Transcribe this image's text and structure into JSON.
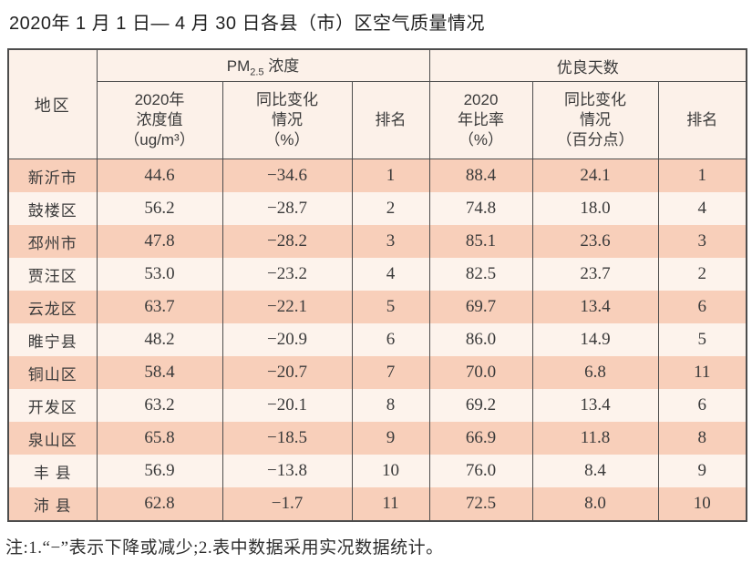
{
  "page": {
    "title": "2020年 1 月 1 日— 4 月 30 日各县（市）区空气质量情况",
    "note": "注:1.“−”表示下降或减少;2.表中数据采用实况数据统计。"
  },
  "colors": {
    "row_odd": "#f8cfba",
    "row_even": "#fdf3ec",
    "header_bg": "#fcf1e9",
    "border": "#4d4d4d",
    "text": "#3a3a3a"
  },
  "table": {
    "header": {
      "region": "地区",
      "pm_group": {
        "prefix": "PM",
        "sub": "2.5",
        "suffix": " 浓度"
      },
      "good_days_group": "优良天数",
      "sub": {
        "pm_value": [
          "2020年",
          "浓度值",
          "（ug/m³）"
        ],
        "pm_change": [
          "同比变化",
          "情况",
          "（%）"
        ],
        "pm_rank": "排名",
        "good_ratio": [
          "2020",
          "年比率",
          "（%）"
        ],
        "good_change": [
          "同比变化",
          "情况",
          "（百分点）"
        ],
        "good_rank": "排名"
      }
    },
    "rows": [
      [
        "新沂市",
        "44.6",
        "−34.6",
        "1",
        "88.4",
        "24.1",
        "1"
      ],
      [
        "鼓楼区",
        "56.2",
        "−28.7",
        "2",
        "74.8",
        "18.0",
        "4"
      ],
      [
        "邳州市",
        "47.8",
        "−28.2",
        "3",
        "85.1",
        "23.6",
        "3"
      ],
      [
        "贾汪区",
        "53.0",
        "−23.2",
        "4",
        "82.5",
        "23.7",
        "2"
      ],
      [
        "云龙区",
        "63.7",
        "−22.1",
        "5",
        "69.7",
        "13.4",
        "6"
      ],
      [
        "睢宁县",
        "48.2",
        "−20.9",
        "6",
        "86.0",
        "14.9",
        "5"
      ],
      [
        "铜山区",
        "58.4",
        "−20.7",
        "7",
        "70.0",
        "6.8",
        "11"
      ],
      [
        "开发区",
        "63.2",
        "−20.1",
        "8",
        "69.2",
        "13.4",
        "6"
      ],
      [
        "泉山区",
        "65.8",
        "−18.5",
        "9",
        "66.9",
        "11.8",
        "8"
      ],
      [
        "丰 县",
        "56.9",
        "−13.8",
        "10",
        "76.0",
        "8.4",
        "9"
      ],
      [
        "沛 县",
        "62.8",
        "−1.7",
        "11",
        "72.5",
        "8.0",
        "10"
      ]
    ]
  }
}
